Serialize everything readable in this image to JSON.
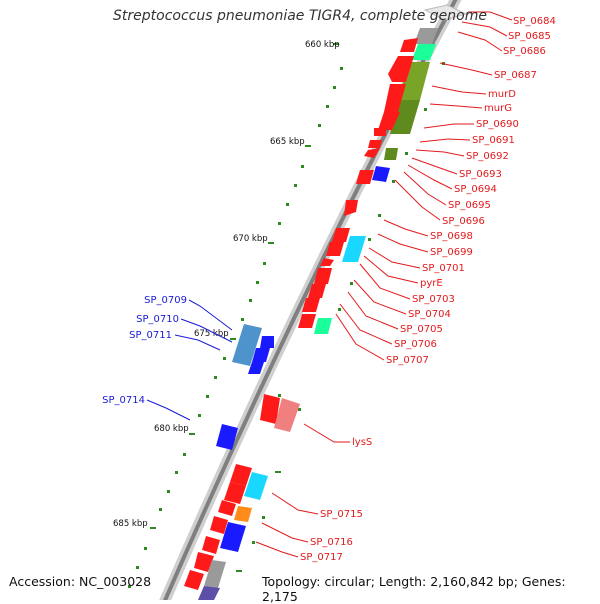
{
  "title": "Streptococcus pneumoniae TIGR4, complete genome",
  "accession": "Accession: NC_003028",
  "topology": "Topology: circular; Length: 2,160,842 bp; Genes: 2,175",
  "colors": {
    "backbone": "#8a8a8a",
    "tick": "#2e8b22",
    "tick_label": "#111111",
    "label_right": "#e31a1c",
    "label_left": "#1a1ad6",
    "label_line": "#e31a1c",
    "red_gene": "#ff1a1a",
    "blue_gene": "#1a1aff",
    "cyan_gene": "#1ad7ff",
    "green_gene": "#1aff9a",
    "olive_gene": "#6b8e23",
    "grey_gene": "#9a9a9a",
    "purple_gene": "#5b4fa8",
    "orange_gene": "#ff8c1a",
    "salmon_gene": "#f08080",
    "steel_gene": "#4f93cc"
  },
  "ticks": [
    "660 kbp",
    "665 kbp",
    "670 kbp",
    "675 kbp",
    "680 kbp",
    "685 kbp"
  ],
  "right_labels": [
    "SP_0684",
    "SP_0685",
    "SP_0686",
    "SP_0687",
    "murD",
    "murG",
    "SP_0690",
    "SP_0691",
    "SP_0692",
    "SP_0693",
    "SP_0694",
    "SP_0695",
    "SP_0696",
    "SP_0698",
    "SP_0699",
    "SP_0701",
    "pyrE",
    "SP_0703",
    "SP_0704",
    "SP_0705",
    "SP_0706",
    "SP_0707",
    "lysS",
    "SP_0715",
    "SP_0716",
    "SP_0717"
  ],
  "left_labels": [
    "SP_0709",
    "SP_0710",
    "SP_0711",
    "SP_0714"
  ]
}
